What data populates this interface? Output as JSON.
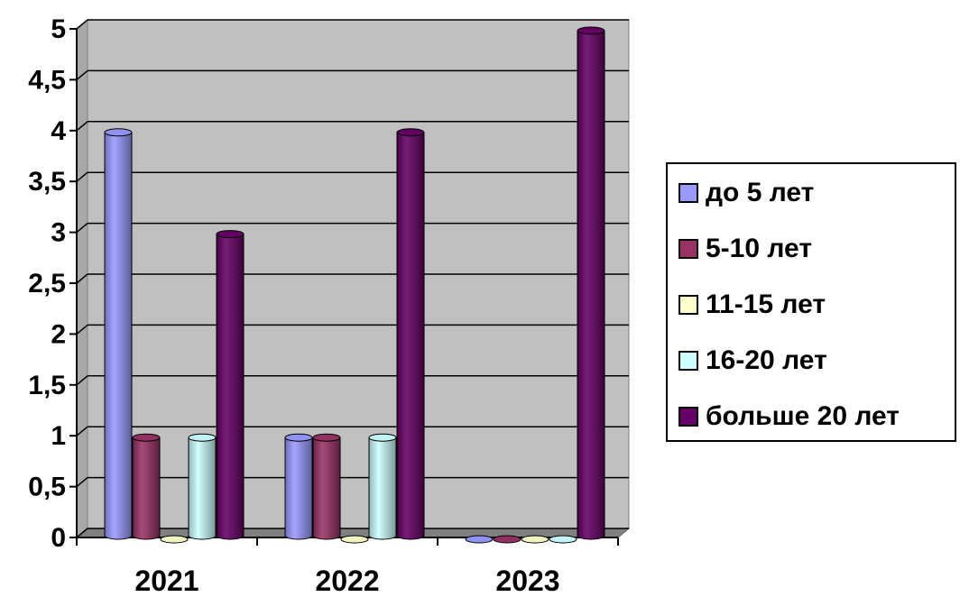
{
  "chart_data": {
    "type": "bar",
    "categories": [
      "2021",
      "2022",
      "2023"
    ],
    "series": [
      {
        "name": "до 5 лет",
        "values": [
          4,
          1,
          0
        ],
        "color": "#9999ff"
      },
      {
        "name": "5-10 лет",
        "values": [
          1,
          1,
          0
        ],
        "color": "#993366"
      },
      {
        "name": "11-15 лет",
        "values": [
          0,
          0,
          0
        ],
        "color": "#ffffcc"
      },
      {
        "name": "16-20 лет",
        "values": [
          1,
          1,
          0
        ],
        "color": "#ccffff"
      },
      {
        "name": "больше 20 лет",
        "values": [
          3,
          4,
          5
        ],
        "color": "#660066"
      }
    ],
    "yticks": [
      "0",
      "0,5",
      "1",
      "1,5",
      "2",
      "2,5",
      "3",
      "3,5",
      "4",
      "4,5",
      "5"
    ],
    "ylim": [
      0,
      5
    ],
    "grid": true,
    "legend_position": "right",
    "plot_background": "#c0c0c0"
  }
}
